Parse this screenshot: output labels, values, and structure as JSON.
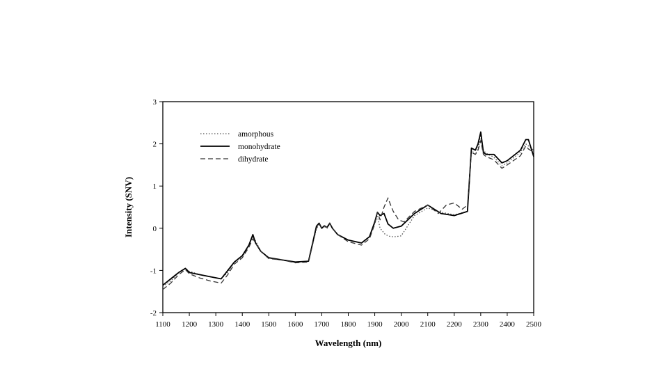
{
  "chart_data": {
    "type": "line",
    "title": "",
    "xlabel": "Wavelength (nm)",
    "ylabel": "Intensity (SNV)",
    "xlim": [
      1100,
      2500
    ],
    "ylim": [
      -2,
      3
    ],
    "xticks": [
      1100,
      1200,
      1300,
      1400,
      1500,
      1600,
      1700,
      1800,
      1900,
      2000,
      2100,
      2200,
      2300,
      2400,
      2500
    ],
    "yticks": [
      -2,
      -1,
      0,
      1,
      2,
      3
    ],
    "grid": false,
    "legend_position": "top-left",
    "series": [
      {
        "name": "amorphous",
        "style": "dotted",
        "color": "#555555",
        "x": [
          1100,
          1130,
          1160,
          1185,
          1200,
          1240,
          1280,
          1320,
          1345,
          1370,
          1400,
          1425,
          1440,
          1450,
          1470,
          1500,
          1550,
          1600,
          1650,
          1680,
          1690,
          1700,
          1710,
          1720,
          1730,
          1740,
          1760,
          1800,
          1850,
          1880,
          1900,
          1910,
          1920,
          1940,
          1960,
          1980,
          2000,
          2050,
          2100,
          2150,
          2200,
          2250,
          2265,
          2280,
          2290,
          2300,
          2310,
          2320,
          2350,
          2380,
          2400,
          2450,
          2470,
          2480,
          2500
        ],
        "y": [
          -1.38,
          -1.25,
          -1.05,
          -0.95,
          -1.02,
          -1.1,
          -1.15,
          -1.2,
          -1.05,
          -0.8,
          -0.7,
          -0.4,
          -0.2,
          -0.3,
          -0.55,
          -0.7,
          -0.75,
          -0.8,
          -0.78,
          0.0,
          0.08,
          0.0,
          0.04,
          0.0,
          0.1,
          0.0,
          -0.15,
          -0.28,
          -0.35,
          -0.2,
          0.12,
          0.28,
          0.0,
          -0.15,
          -0.2,
          -0.2,
          -0.18,
          0.3,
          0.48,
          0.38,
          0.32,
          0.4,
          1.85,
          1.75,
          1.9,
          2.18,
          1.85,
          1.78,
          1.68,
          1.48,
          1.55,
          1.8,
          2.0,
          1.95,
          1.85
        ]
      },
      {
        "name": "monohydrate",
        "style": "solid",
        "color": "#000000",
        "x": [
          1100,
          1130,
          1160,
          1185,
          1200,
          1240,
          1280,
          1320,
          1345,
          1370,
          1400,
          1425,
          1440,
          1450,
          1470,
          1500,
          1550,
          1600,
          1650,
          1680,
          1690,
          1700,
          1710,
          1720,
          1730,
          1740,
          1760,
          1800,
          1850,
          1880,
          1900,
          1910,
          1920,
          1935,
          1950,
          1970,
          2000,
          2050,
          2100,
          2150,
          2200,
          2250,
          2265,
          2280,
          2290,
          2300,
          2310,
          2320,
          2350,
          2380,
          2400,
          2450,
          2470,
          2480,
          2500
        ],
        "y": [
          -1.35,
          -1.2,
          -1.05,
          -0.95,
          -1.05,
          -1.1,
          -1.15,
          -1.2,
          -1.0,
          -0.8,
          -0.65,
          -0.4,
          -0.15,
          -0.35,
          -0.55,
          -0.7,
          -0.75,
          -0.8,
          -0.78,
          0.05,
          0.12,
          0.0,
          0.06,
          0.02,
          0.12,
          0.0,
          -0.15,
          -0.28,
          -0.35,
          -0.2,
          0.15,
          0.38,
          0.3,
          0.35,
          0.1,
          0.0,
          0.05,
          0.35,
          0.55,
          0.35,
          0.3,
          0.4,
          1.9,
          1.85,
          2.0,
          2.28,
          1.8,
          1.75,
          1.75,
          1.55,
          1.6,
          1.85,
          2.1,
          2.1,
          1.7
        ]
      },
      {
        "name": "dihydrate",
        "style": "dashed",
        "color": "#333333",
        "x": [
          1100,
          1130,
          1160,
          1185,
          1200,
          1240,
          1280,
          1320,
          1345,
          1370,
          1400,
          1425,
          1440,
          1450,
          1470,
          1500,
          1550,
          1600,
          1650,
          1680,
          1690,
          1700,
          1710,
          1720,
          1730,
          1740,
          1760,
          1800,
          1850,
          1880,
          1900,
          1910,
          1920,
          1935,
          1950,
          1960,
          1970,
          1990,
          2010,
          2050,
          2100,
          2140,
          2170,
          2200,
          2230,
          2250,
          2265,
          2280,
          2290,
          2300,
          2310,
          2320,
          2350,
          2380,
          2400,
          2450,
          2470,
          2480,
          2500
        ],
        "y": [
          -1.45,
          -1.3,
          -1.1,
          -0.98,
          -1.08,
          -1.18,
          -1.25,
          -1.3,
          -1.1,
          -0.85,
          -0.7,
          -0.45,
          -0.25,
          -0.35,
          -0.55,
          -0.72,
          -0.75,
          -0.82,
          -0.8,
          0.0,
          0.1,
          0.0,
          0.06,
          0.02,
          0.12,
          0.0,
          -0.15,
          -0.32,
          -0.4,
          -0.25,
          0.1,
          0.38,
          0.2,
          0.5,
          0.72,
          0.55,
          0.4,
          0.2,
          0.15,
          0.4,
          0.55,
          0.35,
          0.55,
          0.6,
          0.45,
          0.55,
          1.8,
          1.75,
          1.85,
          2.08,
          1.75,
          1.7,
          1.62,
          1.42,
          1.5,
          1.72,
          1.95,
          1.88,
          1.8
        ]
      }
    ]
  }
}
